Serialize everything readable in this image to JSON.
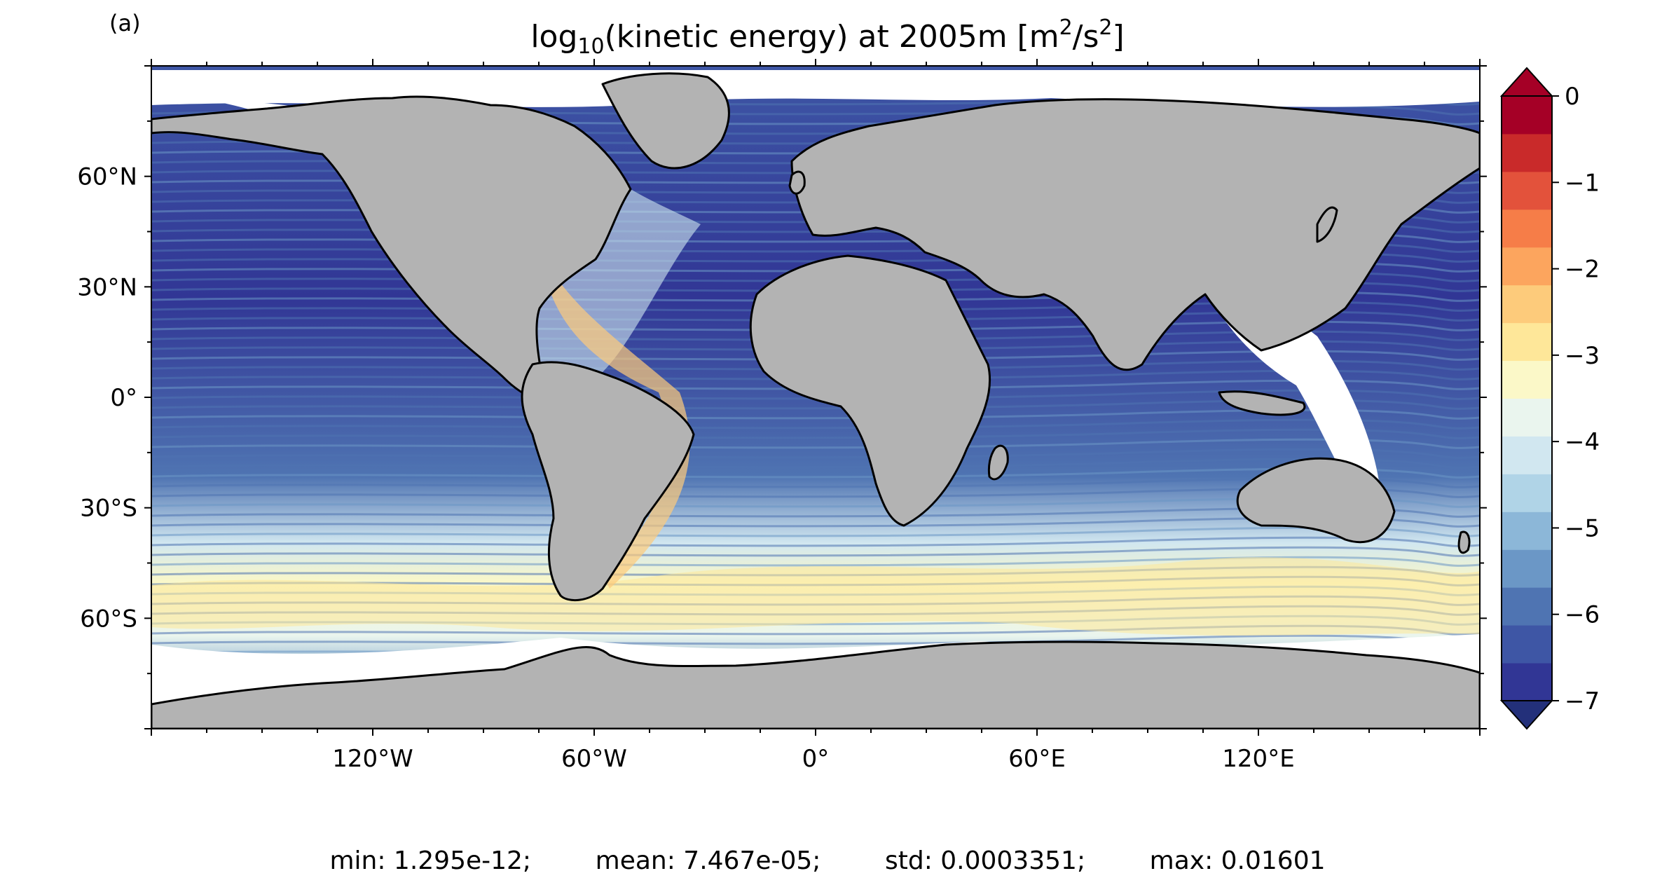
{
  "panel_label": "(a)",
  "title": {
    "prefix": "log",
    "subscript": "10",
    "middle": "(kinetic energy) at 2005m [m",
    "sup1": "2",
    "slash": "/s",
    "sup2": "2",
    "suffix": "]"
  },
  "stats": {
    "min": "min: 1.295e-12;",
    "mean": "mean: 7.467e-05;",
    "std": "std: 0.0003351;",
    "max": "max: 0.01601"
  },
  "map": {
    "projection": "plate-carree",
    "lon_range": [
      -180,
      180
    ],
    "lat_range": [
      -90,
      90
    ],
    "land_color": "#b3b3b3",
    "coastline_color": "#000000",
    "no_data_color": "#ffffff",
    "x_ticks": [
      {
        "lon": -120,
        "label": "120°W"
      },
      {
        "lon": -60,
        "label": "60°W"
      },
      {
        "lon": 0,
        "label": "0°"
      },
      {
        "lon": 60,
        "label": "60°E"
      },
      {
        "lon": 120,
        "label": "120°E"
      }
    ],
    "y_ticks": [
      {
        "lat": 60,
        "label": "60°N"
      },
      {
        "lat": 30,
        "label": "30°N"
      },
      {
        "lat": 0,
        "label": "0°"
      },
      {
        "lat": -30,
        "label": "30°S"
      },
      {
        "lat": -60,
        "label": "60°S"
      }
    ]
  },
  "colorbar": {
    "min": -7,
    "max": 0,
    "step": 0.5,
    "extend": "both",
    "colormap": "RdYlBu_r",
    "ticks": [
      {
        "value": 0,
        "label": "0"
      },
      {
        "value": -1,
        "label": "−1"
      },
      {
        "value": -2,
        "label": "−2"
      },
      {
        "value": -3,
        "label": "−3"
      },
      {
        "value": -4,
        "label": "−4"
      },
      {
        "value": -5,
        "label": "−5"
      },
      {
        "value": -6,
        "label": "−6"
      },
      {
        "value": -7,
        "label": "−7"
      }
    ],
    "colors": [
      "#313695",
      "#3e56a5",
      "#4f74b2",
      "#6b97c6",
      "#8cb7d8",
      "#b0d4e7",
      "#d1e7f0",
      "#eaf5ee",
      "#fbf8c8",
      "#fee799",
      "#fdcb7b",
      "#fca55e",
      "#f67d48",
      "#e3523b",
      "#c92a2a",
      "#a50026"
    ],
    "under_color": "#23307a",
    "over_color": "#a50026"
  }
}
